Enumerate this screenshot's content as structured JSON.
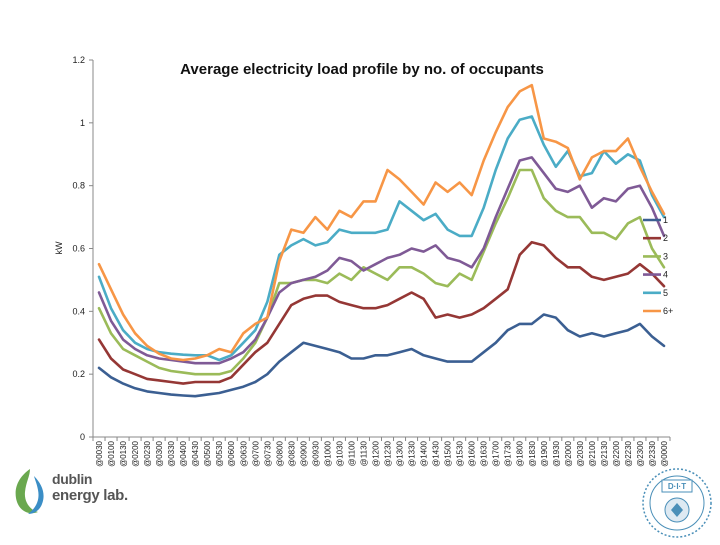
{
  "chart_data": {
    "type": "line",
    "title": "Average electricity load profile by no. of occupants",
    "xlabel": "",
    "ylabel": "kW",
    "ylim": [
      0,
      1.2
    ],
    "yticks": [
      "0",
      "0.2",
      "0.4",
      "0.6",
      "0.8",
      "1",
      "1.2"
    ],
    "ytick_values": [
      0,
      0.2,
      0.4,
      0.6,
      0.8,
      1,
      1.2
    ],
    "grid": false,
    "legend_position": "right",
    "categories": [
      "@0030",
      "@0100",
      "@0130",
      "@0200",
      "@0230",
      "@0300",
      "@0330",
      "@0400",
      "@0430",
      "@0500",
      "@0530",
      "@0600",
      "@0630",
      "@0700",
      "@0730",
      "@0800",
      "@0830",
      "@0900",
      "@0930",
      "@1000",
      "@1030",
      "@1100",
      "@1130",
      "@1200",
      "@1230",
      "@1300",
      "@1330",
      "@1400",
      "@1430",
      "@1500",
      "@1530",
      "@1600",
      "@1630",
      "@1700",
      "@1730",
      "@1800",
      "@1830",
      "@1900",
      "@1930",
      "@2000",
      "@2030",
      "@2100",
      "@2130",
      "@2200",
      "@2230",
      "@2300",
      "@2330",
      "@0000"
    ],
    "series": [
      {
        "name": "1",
        "color": "#3b5f92",
        "values": [
          0.22,
          0.19,
          0.17,
          0.155,
          0.145,
          0.14,
          0.135,
          0.132,
          0.13,
          0.135,
          0.14,
          0.15,
          0.16,
          0.175,
          0.2,
          0.24,
          0.27,
          0.3,
          0.29,
          0.28,
          0.27,
          0.25,
          0.25,
          0.26,
          0.26,
          0.27,
          0.28,
          0.26,
          0.25,
          0.24,
          0.24,
          0.24,
          0.27,
          0.3,
          0.34,
          0.36,
          0.36,
          0.39,
          0.38,
          0.34,
          0.32,
          0.33,
          0.32,
          0.33,
          0.34,
          0.36,
          0.32,
          0.29
        ]
      },
      {
        "name": "2",
        "color": "#953735",
        "values": [
          0.31,
          0.25,
          0.215,
          0.2,
          0.185,
          0.18,
          0.175,
          0.17,
          0.175,
          0.175,
          0.175,
          0.19,
          0.23,
          0.27,
          0.3,
          0.36,
          0.42,
          0.44,
          0.45,
          0.45,
          0.43,
          0.42,
          0.41,
          0.41,
          0.42,
          0.44,
          0.46,
          0.44,
          0.38,
          0.39,
          0.38,
          0.39,
          0.41,
          0.44,
          0.47,
          0.58,
          0.62,
          0.61,
          0.57,
          0.54,
          0.54,
          0.51,
          0.5,
          0.51,
          0.52,
          0.55,
          0.52,
          0.48
        ]
      },
      {
        "name": "3",
        "color": "#9bbb59",
        "values": [
          0.41,
          0.33,
          0.28,
          0.26,
          0.24,
          0.22,
          0.21,
          0.205,
          0.2,
          0.2,
          0.2,
          0.21,
          0.25,
          0.3,
          0.38,
          0.49,
          0.49,
          0.5,
          0.5,
          0.49,
          0.52,
          0.5,
          0.54,
          0.52,
          0.5,
          0.54,
          0.54,
          0.52,
          0.49,
          0.48,
          0.52,
          0.5,
          0.59,
          0.68,
          0.76,
          0.85,
          0.85,
          0.76,
          0.72,
          0.7,
          0.7,
          0.65,
          0.65,
          0.63,
          0.68,
          0.7,
          0.6,
          0.54
        ]
      },
      {
        "name": "4",
        "color": "#7f5a96",
        "values": [
          0.46,
          0.37,
          0.31,
          0.28,
          0.26,
          0.25,
          0.245,
          0.24,
          0.235,
          0.235,
          0.235,
          0.25,
          0.27,
          0.31,
          0.38,
          0.46,
          0.49,
          0.5,
          0.51,
          0.53,
          0.57,
          0.56,
          0.53,
          0.55,
          0.57,
          0.58,
          0.6,
          0.59,
          0.61,
          0.57,
          0.56,
          0.54,
          0.6,
          0.7,
          0.79,
          0.88,
          0.89,
          0.84,
          0.79,
          0.78,
          0.8,
          0.73,
          0.76,
          0.75,
          0.79,
          0.8,
          0.73,
          0.64
        ]
      },
      {
        "name": "5",
        "color": "#4bacc6",
        "values": [
          0.51,
          0.41,
          0.34,
          0.3,
          0.28,
          0.27,
          0.265,
          0.262,
          0.26,
          0.26,
          0.245,
          0.26,
          0.3,
          0.34,
          0.43,
          0.58,
          0.61,
          0.63,
          0.61,
          0.62,
          0.66,
          0.65,
          0.65,
          0.65,
          0.66,
          0.75,
          0.72,
          0.69,
          0.71,
          0.66,
          0.64,
          0.64,
          0.73,
          0.85,
          0.95,
          1.01,
          1.02,
          0.93,
          0.86,
          0.91,
          0.83,
          0.84,
          0.91,
          0.87,
          0.9,
          0.88,
          0.77,
          0.7
        ]
      },
      {
        "name": "6+",
        "color": "#f79646",
        "values": [
          0.55,
          0.47,
          0.39,
          0.33,
          0.29,
          0.265,
          0.25,
          0.245,
          0.25,
          0.26,
          0.28,
          0.27,
          0.33,
          0.36,
          0.38,
          0.56,
          0.66,
          0.65,
          0.7,
          0.66,
          0.72,
          0.7,
          0.75,
          0.75,
          0.85,
          0.82,
          0.78,
          0.74,
          0.81,
          0.78,
          0.81,
          0.77,
          0.88,
          0.97,
          1.05,
          1.1,
          1.12,
          0.95,
          0.94,
          0.92,
          0.82,
          0.89,
          0.91,
          0.91,
          0.95,
          0.86,
          0.78,
          0.71
        ]
      }
    ]
  },
  "logos": {
    "dublin_energy_lab": [
      "dublin",
      "energy lab."
    ],
    "dit": "DIT"
  }
}
